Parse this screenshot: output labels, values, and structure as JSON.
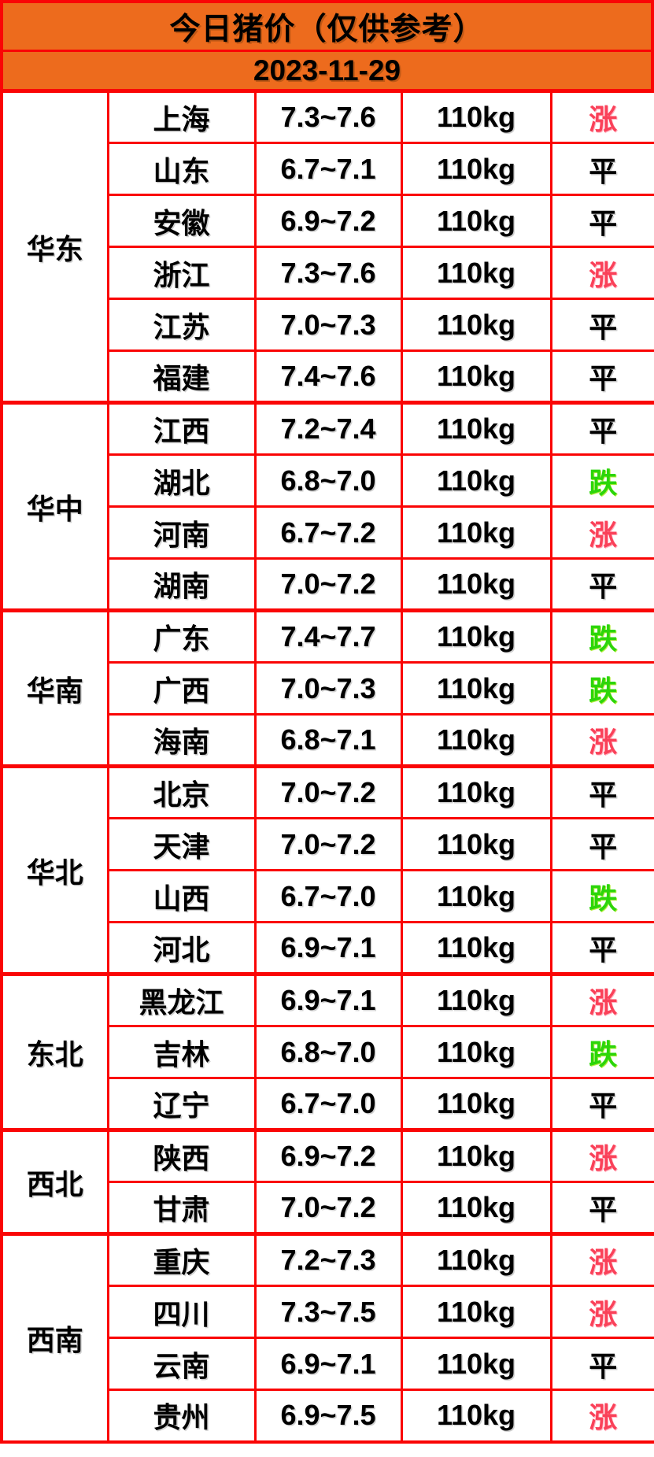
{
  "header": {
    "title": "今日猪价（仅供参考）",
    "date": "2023-11-29"
  },
  "chart_data": {
    "type": "table",
    "title": "今日猪价（仅供参考）",
    "date": "2023-11-29",
    "regions": [
      {
        "region": "华东",
        "rows": [
          {
            "province": "上海",
            "price": "7.3~7.6",
            "weight": "110kg",
            "trend": "涨"
          },
          {
            "province": "山东",
            "price": "6.7~7.1",
            "weight": "110kg",
            "trend": "平"
          },
          {
            "province": "安徽",
            "price": "6.9~7.2",
            "weight": "110kg",
            "trend": "平"
          },
          {
            "province": "浙江",
            "price": "7.3~7.6",
            "weight": "110kg",
            "trend": "涨"
          },
          {
            "province": "江苏",
            "price": "7.0~7.3",
            "weight": "110kg",
            "trend": "平"
          },
          {
            "province": "福建",
            "price": "7.4~7.6",
            "weight": "110kg",
            "trend": "平"
          }
        ]
      },
      {
        "region": "华中",
        "rows": [
          {
            "province": "江西",
            "price": "7.2~7.4",
            "weight": "110kg",
            "trend": "平"
          },
          {
            "province": "湖北",
            "price": "6.8~7.0",
            "weight": "110kg",
            "trend": "跌"
          },
          {
            "province": "河南",
            "price": "6.7~7.2",
            "weight": "110kg",
            "trend": "涨"
          },
          {
            "province": "湖南",
            "price": "7.0~7.2",
            "weight": "110kg",
            "trend": "平"
          }
        ]
      },
      {
        "region": "华南",
        "rows": [
          {
            "province": "广东",
            "price": "7.4~7.7",
            "weight": "110kg",
            "trend": "跌"
          },
          {
            "province": "广西",
            "price": "7.0~7.3",
            "weight": "110kg",
            "trend": "跌"
          },
          {
            "province": "海南",
            "price": "6.8~7.1",
            "weight": "110kg",
            "trend": "涨"
          }
        ]
      },
      {
        "region": "华北",
        "rows": [
          {
            "province": "北京",
            "price": "7.0~7.2",
            "weight": "110kg",
            "trend": "平"
          },
          {
            "province": "天津",
            "price": "7.0~7.2",
            "weight": "110kg",
            "trend": "平"
          },
          {
            "province": "山西",
            "price": "6.7~7.0",
            "weight": "110kg",
            "trend": "跌"
          },
          {
            "province": "河北",
            "price": "6.9~7.1",
            "weight": "110kg",
            "trend": "平"
          }
        ]
      },
      {
        "region": "东北",
        "rows": [
          {
            "province": "黑龙江",
            "price": "6.9~7.1",
            "weight": "110kg",
            "trend": "涨"
          },
          {
            "province": "吉林",
            "price": "6.8~7.0",
            "weight": "110kg",
            "trend": "跌"
          },
          {
            "province": "辽宁",
            "price": "6.7~7.0",
            "weight": "110kg",
            "trend": "平"
          }
        ]
      },
      {
        "region": "西北",
        "rows": [
          {
            "province": "陕西",
            "price": "6.9~7.2",
            "weight": "110kg",
            "trend": "涨"
          },
          {
            "province": "甘肃",
            "price": "7.0~7.2",
            "weight": "110kg",
            "trend": "平"
          }
        ]
      },
      {
        "region": "西南",
        "rows": [
          {
            "province": "重庆",
            "price": "7.2~7.3",
            "weight": "110kg",
            "trend": "涨"
          },
          {
            "province": "四川",
            "price": "7.3~7.5",
            "weight": "110kg",
            "trend": "涨"
          },
          {
            "province": "云南",
            "price": "6.9~7.1",
            "weight": "110kg",
            "trend": "平"
          },
          {
            "province": "贵州",
            "price": "6.9~7.5",
            "weight": "110kg",
            "trend": "涨"
          }
        ]
      }
    ],
    "trend_legend": {
      "涨": "up",
      "跌": "down",
      "平": "flat"
    },
    "colors": {
      "header_bg": "#ED6B1D",
      "border": "#FA0505",
      "up": "#FA4159",
      "down": "#2CD50A",
      "flat": "#000000"
    }
  }
}
